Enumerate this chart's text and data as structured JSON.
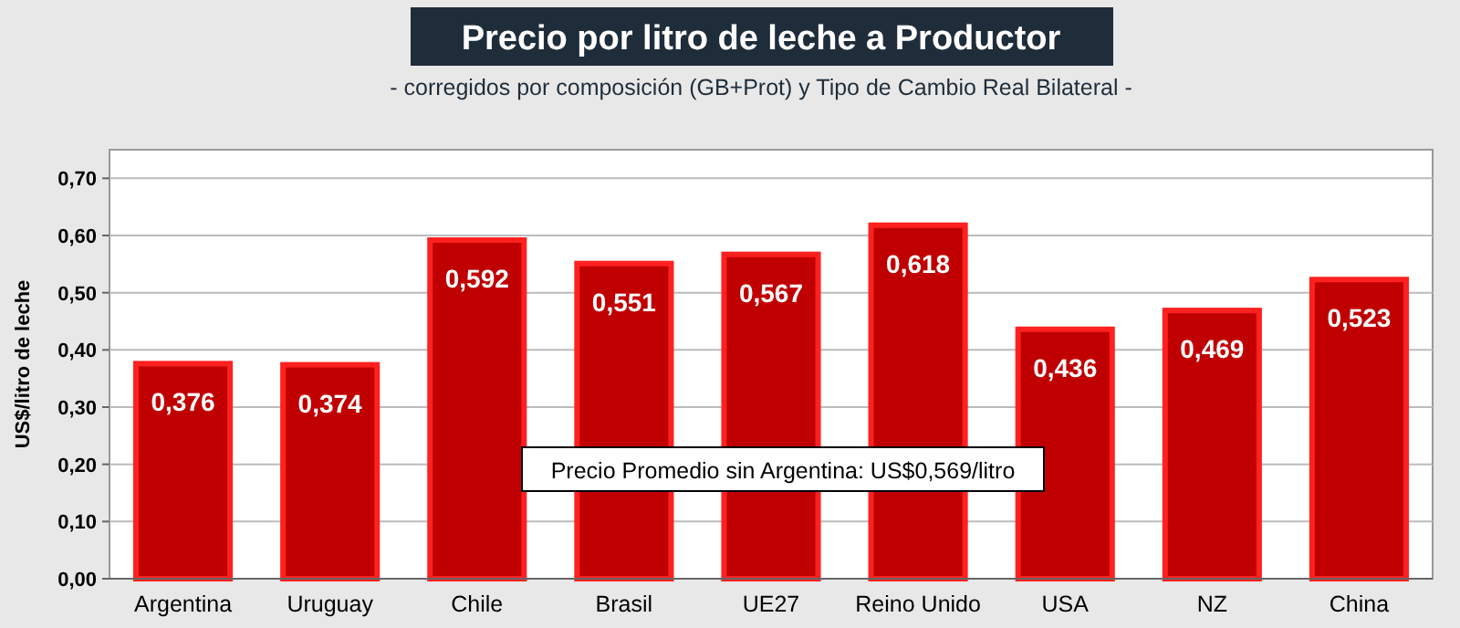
{
  "chart_data": {
    "type": "bar",
    "title": "Precio por litro de leche a Productor",
    "subtitle": "- corregidos por composición (GB+Prot) y Tipo de Cambio Real Bilateral -",
    "ylabel": "US$/litro de leche",
    "categories": [
      "Argentina",
      "Uruguay",
      "Chile",
      "Brasil",
      "UE27",
      "Reino Unido",
      "USA",
      "NZ",
      "China"
    ],
    "values": [
      0.376,
      0.374,
      0.592,
      0.551,
      0.567,
      0.618,
      0.436,
      0.469,
      0.523
    ],
    "value_labels": [
      "0,376",
      "0,374",
      "0,592",
      "0,551",
      "0,567",
      "0,618",
      "0,436",
      "0,469",
      "0,523"
    ],
    "color": "#c00000",
    "ylim": [
      0,
      0.75
    ],
    "yticks": [
      {
        "value": 0,
        "label": "0,00"
      },
      {
        "value": 0.1,
        "label": "0,10"
      },
      {
        "value": 0.2,
        "label": "0,20"
      },
      {
        "value": 0.3,
        "label": "0,30"
      },
      {
        "value": 0.4,
        "label": "0,40"
      },
      {
        "value": 0.5,
        "label": "0,50"
      },
      {
        "value": 0.6,
        "label": "0,60"
      },
      {
        "value": 0.7,
        "label": "0,70"
      }
    ],
    "grid": "y",
    "annotations": [
      "Precio Promedio sin Argentina: US$0,569/litro"
    ]
  }
}
